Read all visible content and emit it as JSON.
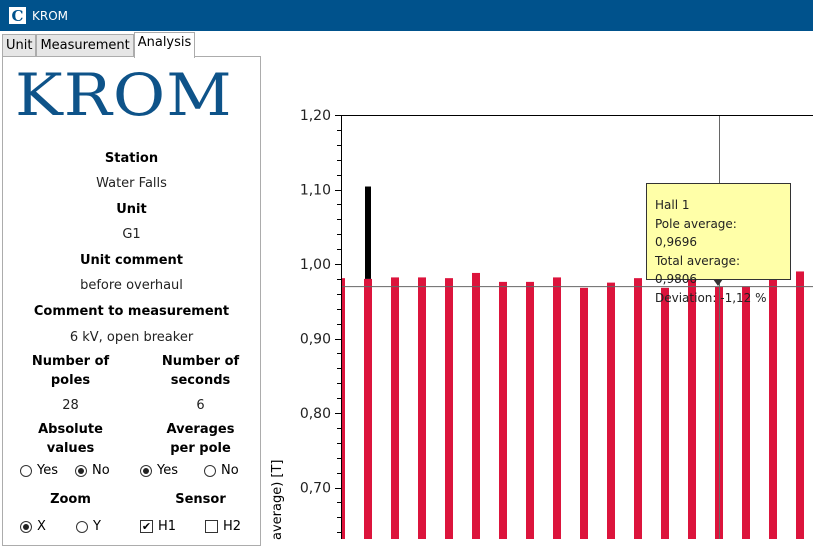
{
  "window": {
    "title": "KROM",
    "icon": "app-c-icon"
  },
  "tabs": [
    {
      "label": "Unit"
    },
    {
      "label": "Measurement"
    },
    {
      "label": "Analysis",
      "active": true
    }
  ],
  "panel": {
    "logo": "KROM",
    "station_label": "Station",
    "station": "Water Falls",
    "unit_label": "Unit",
    "unit": "G1",
    "unit_comment_label": "Unit comment",
    "unit_comment": "before overhaul",
    "measurement_comment_label": "Comment to measurement",
    "measurement_comment": "6 kV, open breaker",
    "poles_label_1": "Number of",
    "poles_label_2": "poles",
    "poles": "28",
    "seconds_label_1": "Number of",
    "seconds_label_2": "seconds",
    "seconds": "6",
    "absolute_label_1": "Absolute",
    "absolute_label_2": "values",
    "averages_label_1": "Averages",
    "averages_label_2": "per pole",
    "absolute_options": [
      {
        "label": "Yes",
        "selected": false
      },
      {
        "label": "No",
        "selected": true
      }
    ],
    "averages_options": [
      {
        "label": "Yes",
        "selected": true
      },
      {
        "label": "No",
        "selected": false
      }
    ],
    "zoom_label": "Zoom",
    "zoom_options": [
      {
        "label": "X",
        "selected": true
      },
      {
        "label": "Y",
        "selected": false
      }
    ],
    "sensor_label": "Sensor",
    "sensor_options": [
      {
        "label": "H1",
        "checked": true
      },
      {
        "label": "H2",
        "checked": false
      }
    ]
  },
  "chart_data": {
    "type": "bar",
    "ylabel": "average) [T]",
    "ylim": [
      0.628,
      1.2
    ],
    "yticks": [
      "1,20",
      "1,10",
      "1,00",
      "0,90",
      "0,80",
      "0,70"
    ],
    "ytick_values": [
      1.2,
      1.1,
      1.0,
      0.9,
      0.8,
      0.7
    ],
    "bar_color": "#dc143c",
    "values": [
      0.981,
      0.98,
      0.982,
      0.982,
      0.981,
      0.988,
      0.976,
      0.976,
      0.982,
      0.968,
      0.975,
      0.981,
      0.968,
      0.981,
      0.9696,
      0.97,
      0.981,
      0.99
    ],
    "peak": {
      "index": 1,
      "value": 1.104,
      "color": "#000000"
    },
    "cursor": {
      "index": 14,
      "value": 0.9696
    }
  },
  "tooltip": {
    "line1": "Hall 1",
    "line2": "Pole average: 0,9696",
    "line3": "Total average: 0,9806",
    "line4": "Deviation: -1,12 %"
  }
}
